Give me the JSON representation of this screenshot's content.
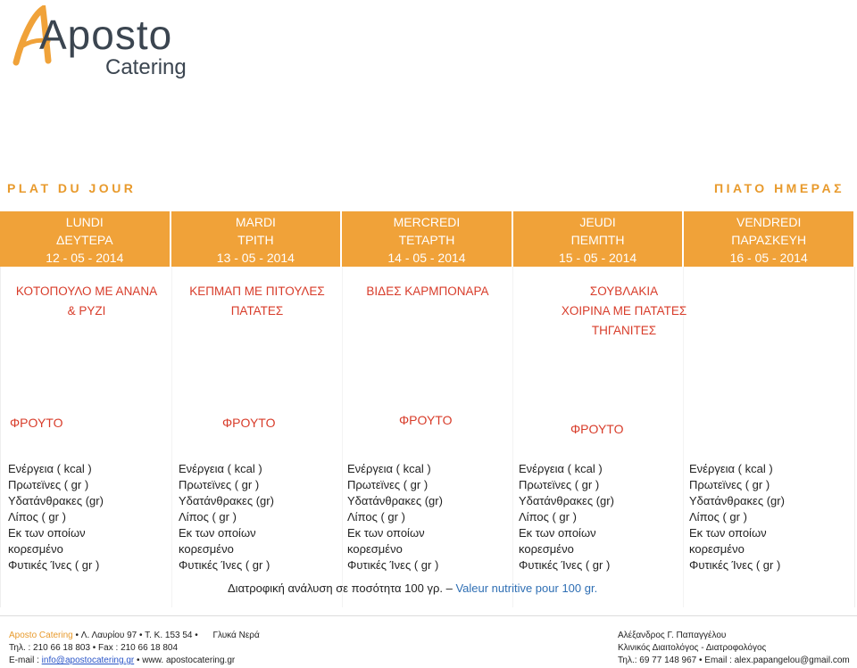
{
  "brand": {
    "logo_main": "Aposto",
    "logo_sub": "Catering"
  },
  "headings": {
    "left": "PLAT DU JOUR",
    "right": "ΠΙΑΤΟ ΗΜΕΡΑΣ"
  },
  "days": [
    {
      "fr": "LUNDI",
      "gr": "ΔΕΥΤΕΡΑ",
      "date": "12 - 05 - 2014"
    },
    {
      "fr": "MARDI",
      "gr": "ΤΡΙΤΗ",
      "date": "13 - 05 - 2014"
    },
    {
      "fr": "MERCREDI",
      "gr": "ΤΕΤΑΡΤΗ",
      "date": "14 - 05 - 2014"
    },
    {
      "fr": "JEUDI",
      "gr": "ΠΕΜΠΤΗ",
      "date": "15 - 05 - 2014"
    },
    {
      "fr": "VENDREDI",
      "gr": "ΠΑΡΑΣΚΕΥΗ",
      "date": "16 - 05 - 2014"
    }
  ],
  "dishes": [
    [
      "ΚΟΤΟΠΟΥΛΟ ΜΕ ΑΝΑΝΑ",
      "& ΡΥΖΙ"
    ],
    [
      "ΚΕΠΜΑΠ ΜΕ ΠΙΤΟΥΛΕΣ",
      "ΠΑΤΑΤΕΣ"
    ],
    [
      "ΒΙΔΕΣ ΚΑΡΜΠΟΝΑΡΑ"
    ],
    [
      "ΣΟΥΒΛΑΚΙΑ",
      "ΧΟΙΡΙΝΑ ΜΕ ΠΑΤΑΤΕΣ",
      "ΤΗΓΑΝΙΤΕΣ"
    ]
  ],
  "fruit_label": "ΦΡΟΥΤΟ",
  "nutrition_lines": [
    "Ενέργεια ( kcal )",
    "Πρωτεϊνες ( gr )",
    "Υδατάνθρακες (gr)",
    "Λίπος ( gr )",
    "Εκ των οποίων",
    "κορεσμένο",
    "Φυτικές Ίνες ( gr )"
  ],
  "note": {
    "gr": "Διατροφική ανάλυση σε ποσότητα 100 γρ.",
    "dash": " – ",
    "fr": "Valeur nutritive pour 100 gr."
  },
  "footer_left": {
    "line1_brand": "Aposto Catering",
    "line1_rest": " • Λ. Λαυρίου 97 • Τ. Κ. 153 54 •      Γλυκά Νερά",
    "line2": "Τηλ. : 210 66 18 803 • Fax : 210 66 18 804",
    "line3_prefix": "E-mail : ",
    "email": "info@apostocatering.gr",
    "line3_suffix": " • www. apostocatering.gr"
  },
  "footer_right": {
    "line1": "Αλέξανδρος Γ. Παπαγγέλου",
    "line2": "Κλινικός Διαιτολόγος - Διατροφολόγος",
    "line3": "Τηλ.: 69 77 148 967 • Email : alex.papangelou@gmail.com"
  },
  "colors": {
    "accent": "#f0a239",
    "heading": "#e89a2c",
    "dish": "#d83c2a",
    "note_fr": "#2f6fb4"
  }
}
